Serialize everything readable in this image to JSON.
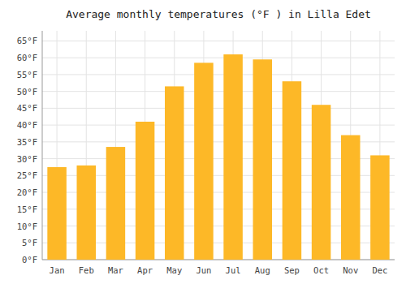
{
  "chart_data": {
    "type": "bar",
    "title": "Average monthly temperatures (°F ) in Lilla Edet",
    "categories": [
      "Jan",
      "Feb",
      "Mar",
      "Apr",
      "May",
      "Jun",
      "Jul",
      "Aug",
      "Sep",
      "Oct",
      "Nov",
      "Dec"
    ],
    "values": [
      27.5,
      28.0,
      33.5,
      41.0,
      51.5,
      58.5,
      61.0,
      59.5,
      53.0,
      46.0,
      37.0,
      31.0
    ],
    "color": "#FDB827",
    "ylim": [
      0,
      68
    ],
    "yticks": [
      {
        "value": 0,
        "label": "0°F"
      },
      {
        "value": 5,
        "label": "5°F"
      },
      {
        "value": 10,
        "label": "10°F"
      },
      {
        "value": 15,
        "label": "15°F"
      },
      {
        "value": 20,
        "label": "20°F"
      },
      {
        "value": 25,
        "label": "25°F"
      },
      {
        "value": 30,
        "label": "30°F"
      },
      {
        "value": 35,
        "label": "35°F"
      },
      {
        "value": 40,
        "label": "40°F"
      },
      {
        "value": 45,
        "label": "45°F"
      },
      {
        "value": 50,
        "label": "50°F"
      },
      {
        "value": 55,
        "label": "55°F"
      },
      {
        "value": 60,
        "label": "60°F"
      },
      {
        "value": 65,
        "label": "65°F"
      }
    ],
    "grid": true
  }
}
